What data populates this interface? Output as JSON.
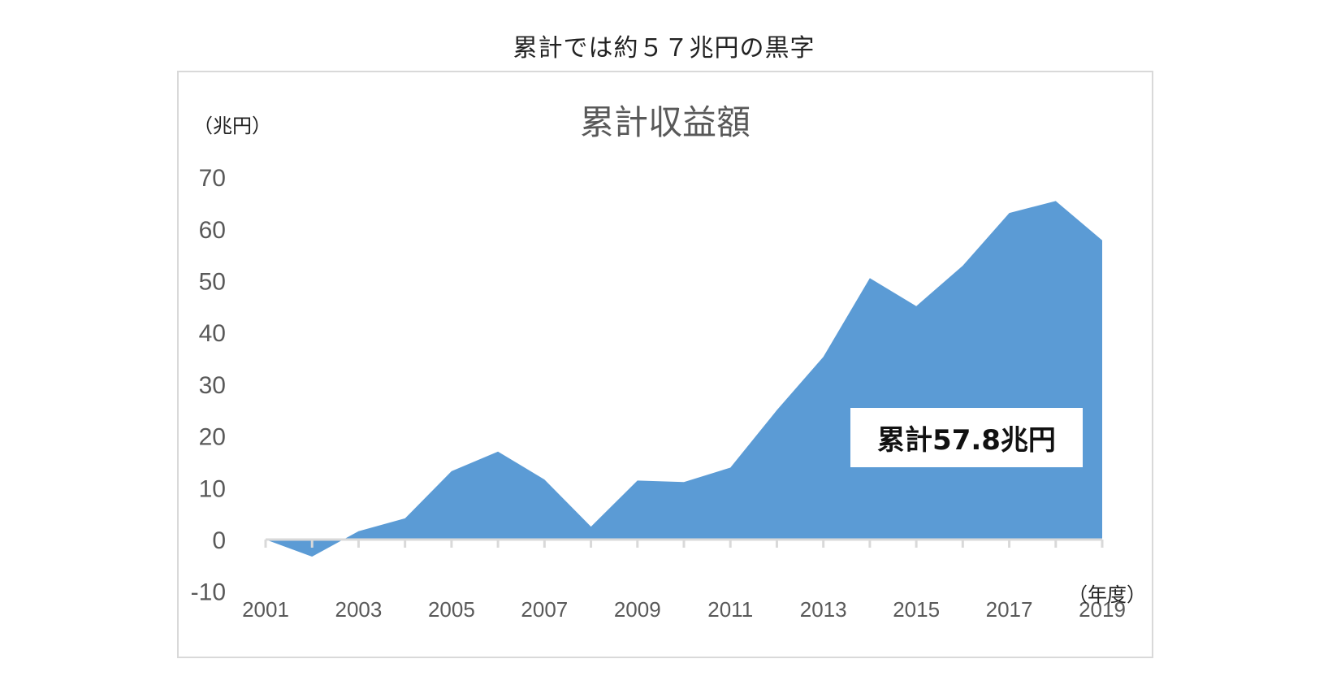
{
  "page": {
    "heading": "累計では約５７兆円の黒字"
  },
  "chart": {
    "title": "累計収益額",
    "y_unit": "（兆円）",
    "x_unit": "（年度）",
    "callout": "累計57.8兆円",
    "fill_color": "#5b9bd5",
    "axis_color": "#d9d9d9"
  },
  "chart_data": {
    "type": "area",
    "title": "累計収益額",
    "subtitle": "累計では約５７兆円の黒字",
    "xlabel": "（年度）",
    "ylabel": "（兆円）",
    "x": [
      2001,
      2002,
      2003,
      2004,
      2005,
      2006,
      2007,
      2008,
      2009,
      2010,
      2011,
      2012,
      2013,
      2014,
      2015,
      2016,
      2017,
      2018,
      2019
    ],
    "series": [
      {
        "name": "累計収益額",
        "values": [
          0.0,
          -3.3,
          1.6,
          4.1,
          13.2,
          17.0,
          11.6,
          2.5,
          11.4,
          11.1,
          13.9,
          25.0,
          35.3,
          50.5,
          45.1,
          52.9,
          63.1,
          65.4,
          57.8
        ]
      }
    ],
    "ylim": [
      -10,
      70
    ],
    "yticks": [
      70,
      60,
      50,
      40,
      30,
      20,
      10,
      0,
      -10
    ],
    "xtick_labels": [
      "2001",
      "2003",
      "2005",
      "2007",
      "2009",
      "2011",
      "2013",
      "2015",
      "2017",
      "2019"
    ],
    "annotations": [
      "累計57.8兆円"
    ],
    "grid": false,
    "legend": "none"
  }
}
